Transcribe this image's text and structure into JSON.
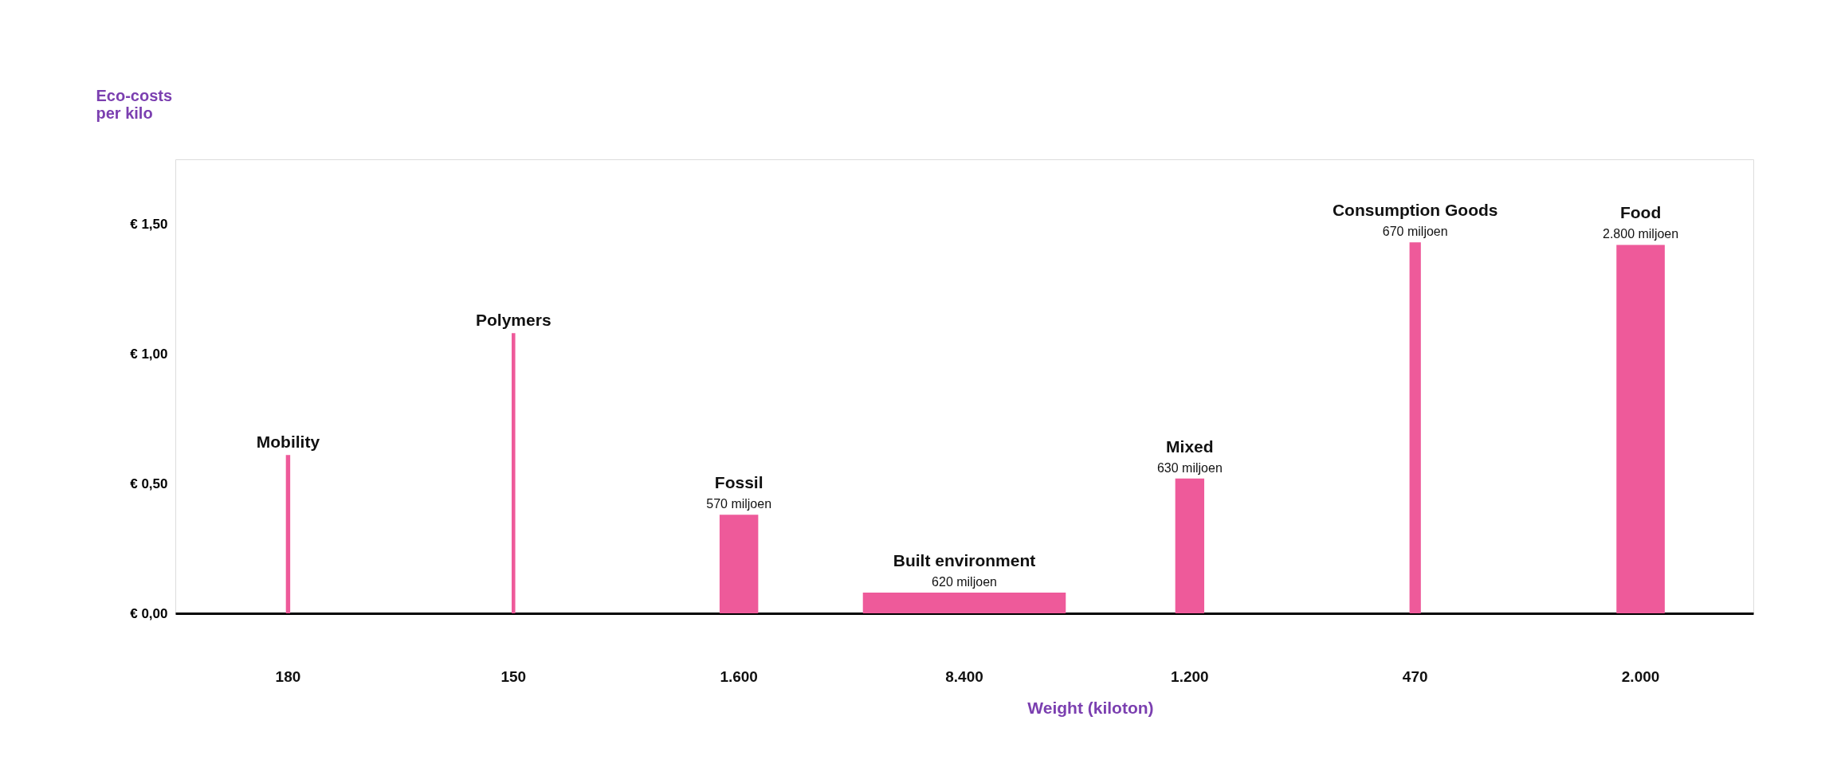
{
  "chart_data": {
    "type": "bar",
    "ylabel": "Eco-costs per kilo",
    "xlabel": "Weight (kiloton)",
    "categories": [
      "180",
      "150",
      "1.600",
      "8.400",
      "1.200",
      "470",
      "2.000"
    ],
    "series": [
      {
        "color": "#ee5a9a",
        "values": [
          0.61,
          1.08,
          0.38,
          0.08,
          0.52,
          1.43,
          1.42
        ]
      }
    ],
    "ylim": [
      0,
      1.75
    ],
    "yticks": [
      {
        "value": 0,
        "label": "€ 0,00"
      },
      {
        "value": 0.5,
        "label": "€ 0,50"
      },
      {
        "value": 1.0,
        "label": "€ 1,00"
      },
      {
        "value": 1.5,
        "label": "€ 1,50"
      }
    ],
    "annotations": [
      {
        "text": "Mobility",
        "x": "180",
        "y": 0.61
      },
      {
        "text": "Polymers",
        "x": "150",
        "y": 1.08
      },
      {
        "text": "Fossil",
        "x": "1.600",
        "y": 0.38
      },
      {
        "text": "570 miljoen",
        "x": "1.600",
        "y": 0.38
      },
      {
        "text": "Built environment",
        "x": "8.400",
        "y": 0.08
      },
      {
        "text": "620 miljoen",
        "x": "8.400",
        "y": 0.08
      },
      {
        "text": "Mixed",
        "x": "1.200",
        "y": 0.52
      },
      {
        "text": "630 miljoen",
        "x": "1.200",
        "y": 0.52
      },
      {
        "text": "Consumption Goods",
        "x": "470",
        "y": 1.43
      },
      {
        "text": "670 miljoen",
        "x": "470",
        "y": 1.43
      },
      {
        "text": "Food",
        "x": "2.000",
        "y": 1.42
      },
      {
        "text": "2.800 miljoen",
        "x": "2.000",
        "y": 1.42
      }
    ]
  }
}
